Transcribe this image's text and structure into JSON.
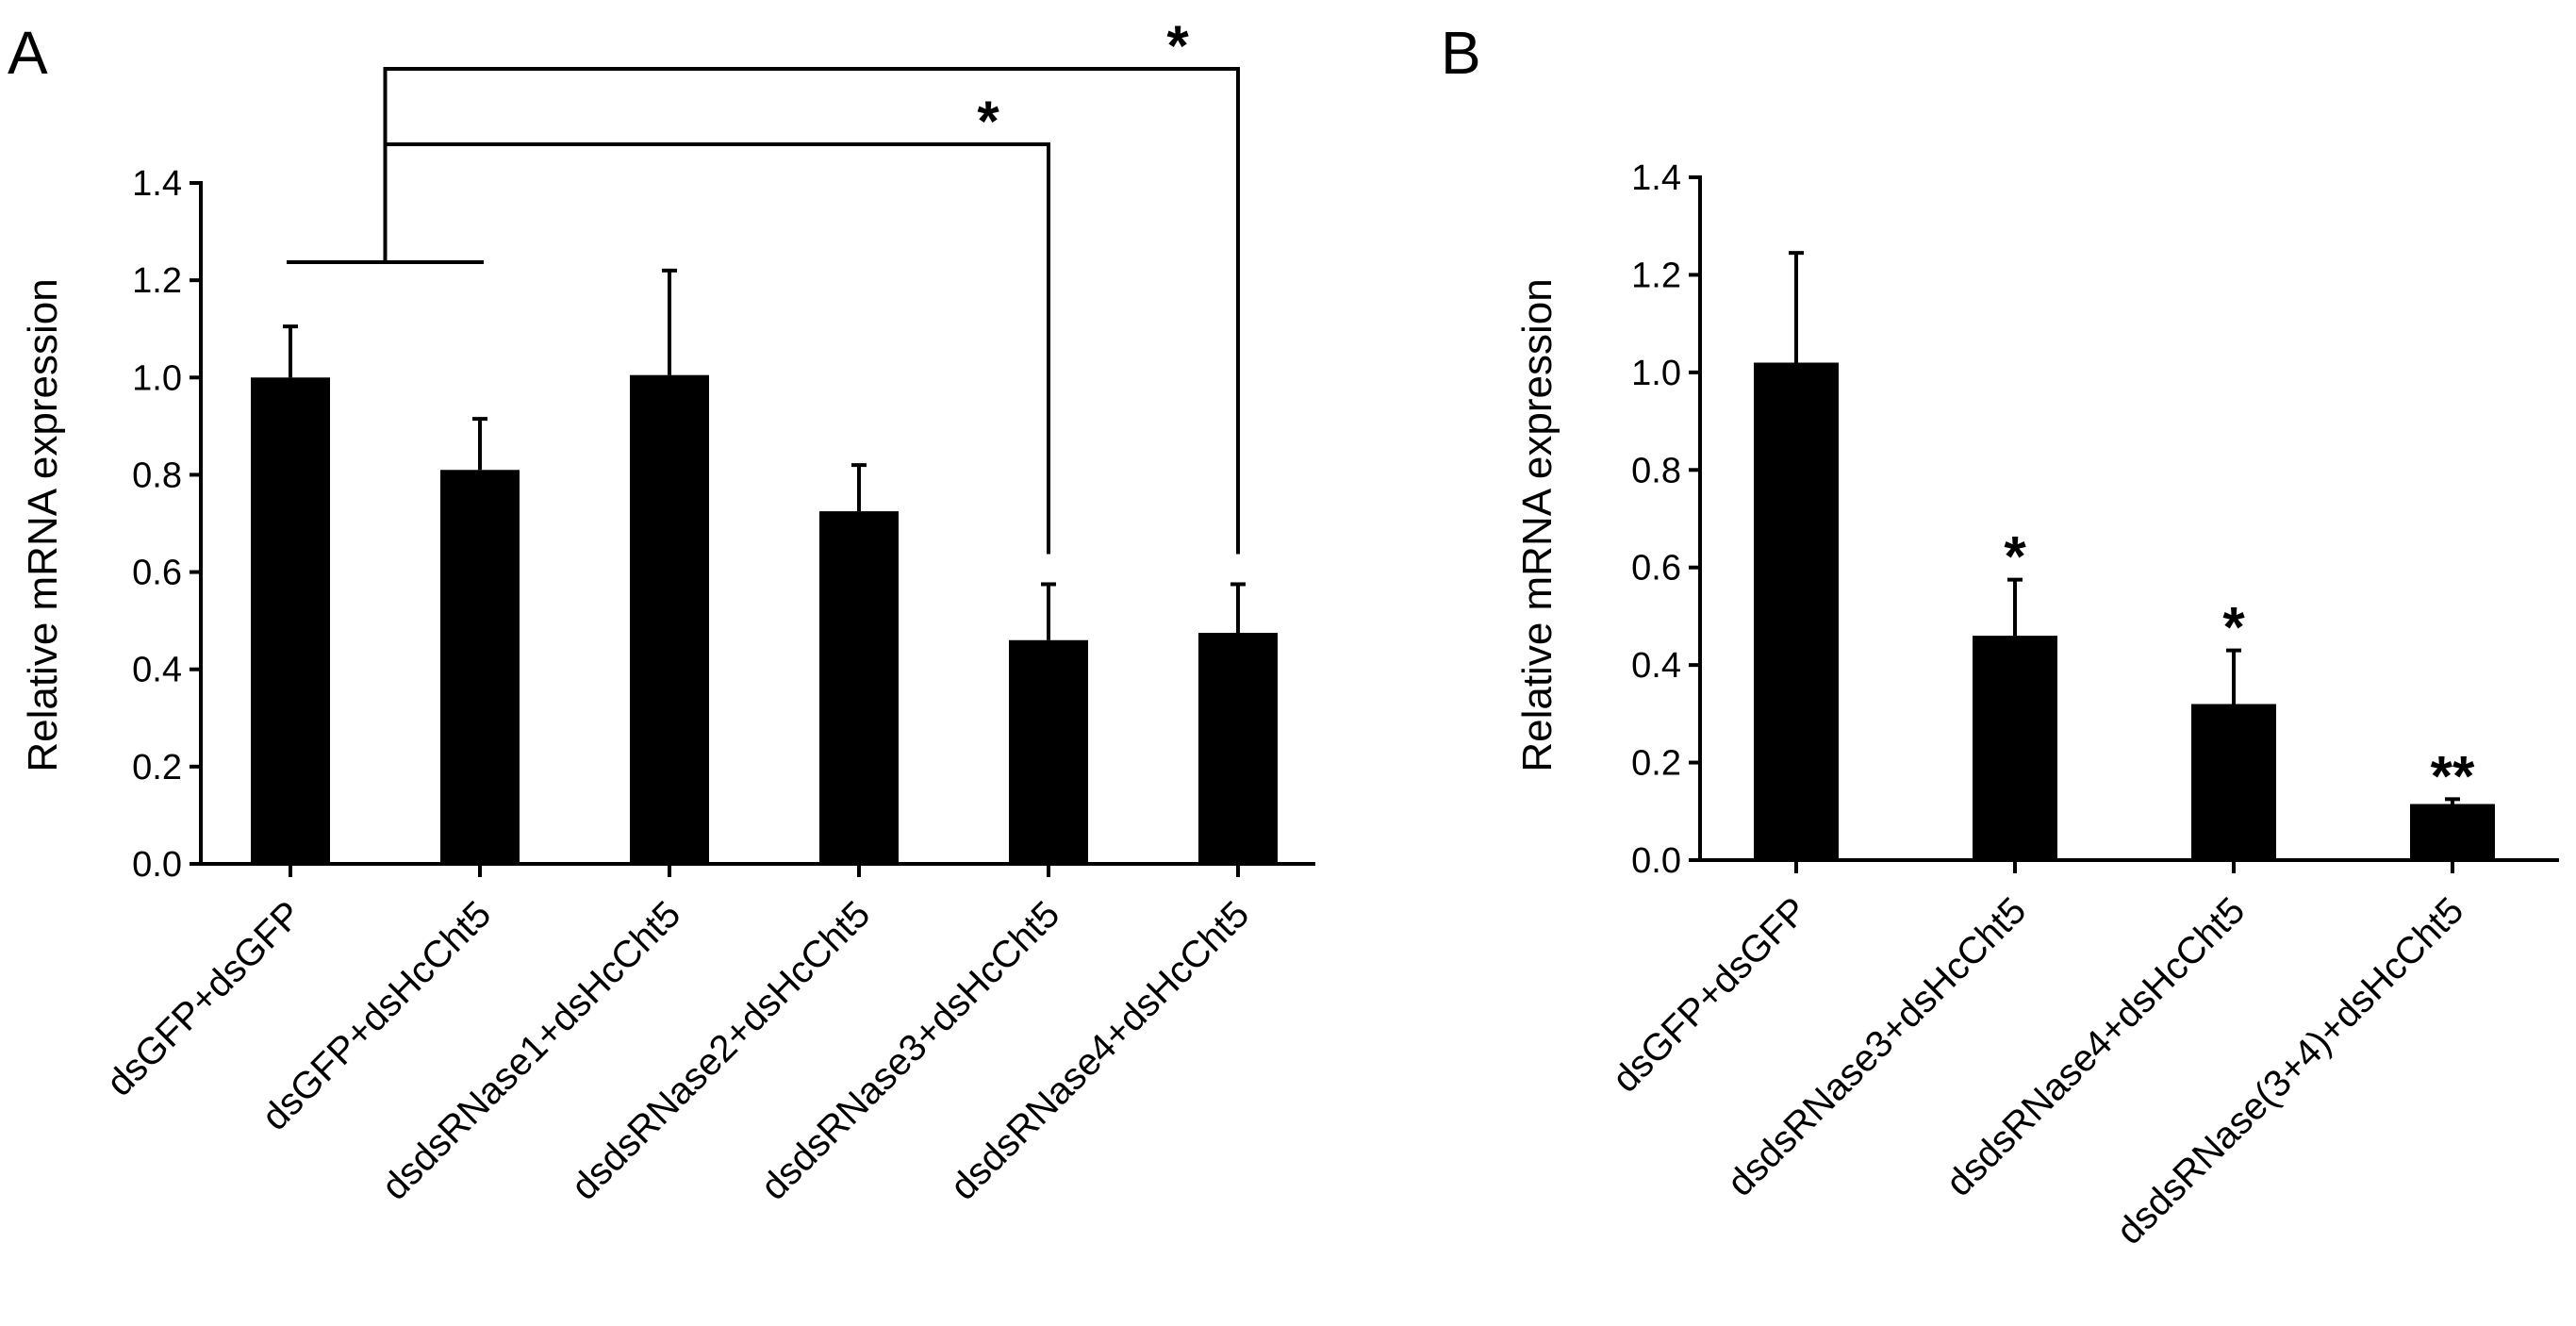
{
  "chart_data": [
    {
      "panel": "A",
      "type": "bar",
      "title": "",
      "xlabel": "",
      "ylabel": "Relative mRNA expression",
      "ylim": [
        0,
        1.4
      ],
      "yticks": [
        "0.0",
        "0.2",
        "0.4",
        "0.6",
        "0.8",
        "1.0",
        "1.2",
        "1.4"
      ],
      "categories": [
        "dsGFP+dsGFP",
        "dsGFP+dsHcCht5",
        "dsdsRNase1+dsHcCht5",
        "dsdsRNase2+dsHcCht5",
        "dsdsRNase3+dsHcCht5",
        "dsdsRNase4+dsHcCht5"
      ],
      "values": [
        1.0,
        0.81,
        1.005,
        0.725,
        0.46,
        0.475
      ],
      "errors": [
        0.105,
        0.105,
        0.215,
        0.095,
        0.115,
        0.1
      ],
      "bar_color": "#000000",
      "comparisons": [
        {
          "group": [
            0,
            1
          ],
          "to": 4,
          "label": "*"
        },
        {
          "group": [
            0,
            1
          ],
          "to": 5,
          "label": "*"
        }
      ]
    },
    {
      "panel": "B",
      "type": "bar",
      "title": "",
      "xlabel": "",
      "ylabel": "Relative mRNA  expression",
      "ylim": [
        0,
        1.4
      ],
      "yticks": [
        "0.0",
        "0.2",
        "0.4",
        "0.6",
        "0.8",
        "1.0",
        "1.2",
        "1.4"
      ],
      "categories": [
        "dsGFP+dsGFP",
        "dsdsRNase3+dsHcCht5",
        "dsdsRNase4+dsHcCht5",
        "dsdsRNase(3+4)+dsHcCht5"
      ],
      "values": [
        1.02,
        0.46,
        0.32,
        0.115
      ],
      "errors": [
        0.225,
        0.115,
        0.11,
        0.01
      ],
      "bar_color": "#000000",
      "significance": [
        "",
        "*",
        "*",
        "**"
      ]
    }
  ]
}
